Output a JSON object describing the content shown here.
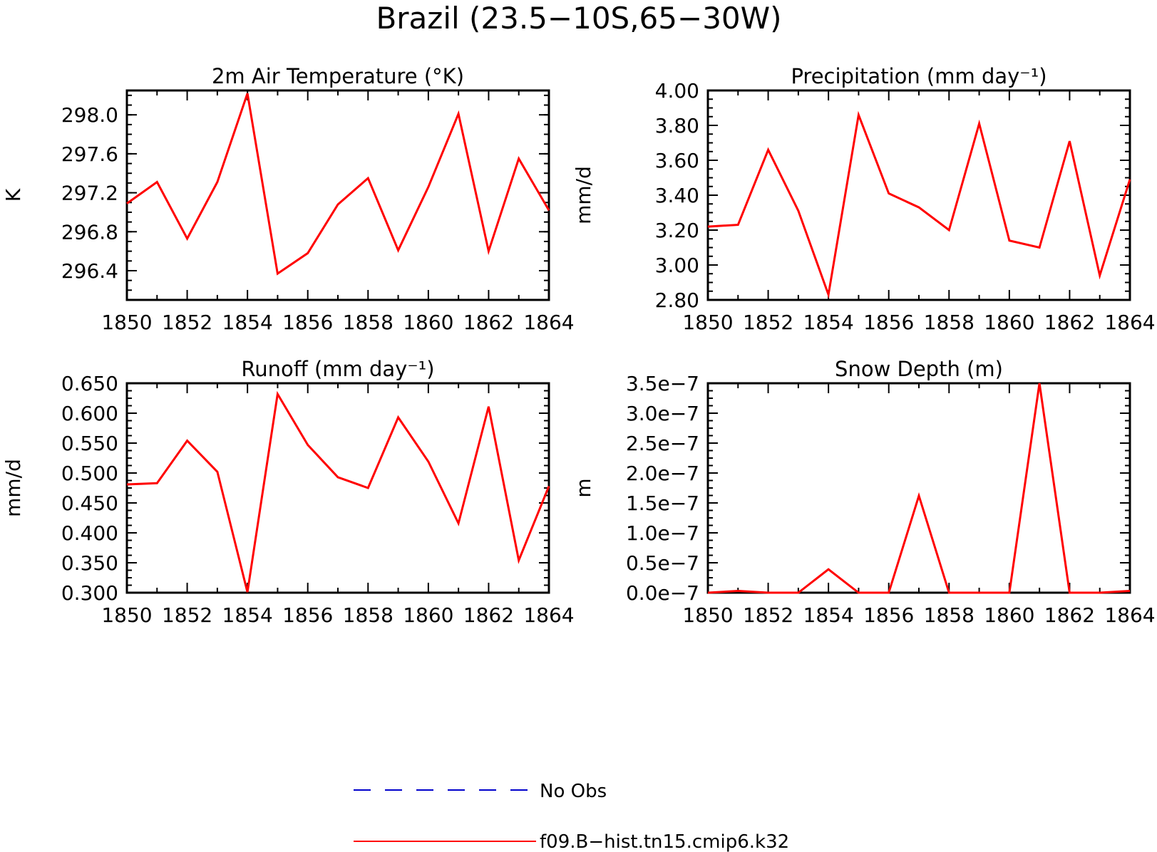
{
  "title": "Brazil (23.5−10S,65−30W)",
  "colors": {
    "model": "#ff0000",
    "obs": "#0000cc"
  },
  "legend": {
    "items": [
      {
        "label": "No Obs",
        "style": "dashed",
        "color": "#0000cc"
      },
      {
        "label": "f09.B−hist.tn15.cmip6.k32",
        "style": "solid",
        "color": "#ff0000"
      }
    ]
  },
  "chart_data": [
    {
      "type": "line",
      "title": "2m Air Temperature (°K)",
      "ylabel": "K",
      "xlim": [
        1850,
        1864
      ],
      "ylim": [
        296.1,
        298.25
      ],
      "xticks": [
        1850,
        1852,
        1854,
        1856,
        1858,
        1860,
        1862,
        1864
      ],
      "xtick_labels": [
        "1850",
        "1852",
        "1854",
        "1856",
        "1858",
        "1860",
        "1862",
        "1864"
      ],
      "yticks": [
        296.4,
        296.8,
        297.2,
        297.6,
        298.0
      ],
      "ytick_labels": [
        "296.4",
        "296.8",
        "297.2",
        "297.6",
        "298.0"
      ],
      "yminor": 0.1,
      "series": [
        {
          "name": "f09.B−hist.tn15.cmip6.k32",
          "x": [
            1850,
            1851,
            1852,
            1853,
            1854,
            1855,
            1856,
            1857,
            1858,
            1859,
            1860,
            1861,
            1862,
            1863,
            1864
          ],
          "values": [
            297.09,
            297.31,
            296.73,
            297.31,
            298.22,
            296.37,
            296.58,
            297.08,
            297.35,
            296.61,
            297.26,
            298.01,
            296.6,
            297.55,
            297.02
          ]
        }
      ]
    },
    {
      "type": "line",
      "title": "Precipitation (mm day⁻¹)",
      "ylabel": "mm/d",
      "xlim": [
        1850,
        1864
      ],
      "ylim": [
        2.8,
        4.0
      ],
      "xticks": [
        1850,
        1852,
        1854,
        1856,
        1858,
        1860,
        1862,
        1864
      ],
      "xtick_labels": [
        "1850",
        "1852",
        "1854",
        "1856",
        "1858",
        "1860",
        "1862",
        "1864"
      ],
      "yticks": [
        2.8,
        3.0,
        3.2,
        3.4,
        3.6,
        3.8,
        4.0
      ],
      "ytick_labels": [
        "2.80",
        "3.00",
        "3.20",
        "3.40",
        "3.60",
        "3.80",
        "4.00"
      ],
      "yminor": 0.05,
      "series": [
        {
          "name": "f09.B−hist.tn15.cmip6.k32",
          "x": [
            1850,
            1851,
            1852,
            1853,
            1854,
            1855,
            1856,
            1857,
            1858,
            1859,
            1860,
            1861,
            1862,
            1863,
            1864
          ],
          "values": [
            3.22,
            3.23,
            3.66,
            3.31,
            2.83,
            3.86,
            3.41,
            3.33,
            3.2,
            3.81,
            3.14,
            3.1,
            3.71,
            2.94,
            3.49
          ]
        }
      ]
    },
    {
      "type": "line",
      "title": "Runoff (mm day⁻¹)",
      "ylabel": "mm/d",
      "xlim": [
        1850,
        1864
      ],
      "ylim": [
        0.3,
        0.65
      ],
      "xticks": [
        1850,
        1852,
        1854,
        1856,
        1858,
        1860,
        1862,
        1864
      ],
      "xtick_labels": [
        "1850",
        "1852",
        "1854",
        "1856",
        "1858",
        "1860",
        "1862",
        "1864"
      ],
      "yticks": [
        0.3,
        0.35,
        0.4,
        0.45,
        0.5,
        0.55,
        0.6,
        0.65
      ],
      "ytick_labels": [
        "0.300",
        "0.350",
        "0.400",
        "0.450",
        "0.500",
        "0.550",
        "0.600",
        "0.650"
      ],
      "yminor": 0.0125,
      "series": [
        {
          "name": "f09.B−hist.tn15.cmip6.k32",
          "x": [
            1850,
            1851,
            1852,
            1853,
            1854,
            1855,
            1856,
            1857,
            1858,
            1859,
            1860,
            1861,
            1862,
            1863,
            1864
          ],
          "values": [
            0.481,
            0.483,
            0.554,
            0.502,
            0.301,
            0.632,
            0.547,
            0.493,
            0.475,
            0.593,
            0.519,
            0.416,
            0.611,
            0.354,
            0.478
          ]
        }
      ]
    },
    {
      "type": "line",
      "title": "Snow Depth (m)",
      "ylabel": "m",
      "xlim": [
        1850,
        1864
      ],
      "ylim": [
        0,
        3.5e-07
      ],
      "xticks": [
        1850,
        1852,
        1854,
        1856,
        1858,
        1860,
        1862,
        1864
      ],
      "xtick_labels": [
        "1850",
        "1852",
        "1854",
        "1856",
        "1858",
        "1860",
        "1862",
        "1864"
      ],
      "yticks": [
        0,
        5e-08,
        1e-07,
        1.5e-07,
        2e-07,
        2.5e-07,
        3e-07,
        3.5e-07
      ],
      "ytick_labels": [
        "0.0e−7",
        "0.5e−7",
        "1.0e−7",
        "1.5e−7",
        "2.0e−7",
        "2.5e−7",
        "3.0e−7",
        "3.5e−7"
      ],
      "yminor": 1.25e-08,
      "series": [
        {
          "name": "f09.B−hist.tn15.cmip6.k32",
          "x": [
            1850,
            1851,
            1852,
            1853,
            1854,
            1855,
            1856,
            1857,
            1858,
            1859,
            1860,
            1861,
            1862,
            1863,
            1864
          ],
          "values": [
            0,
            3e-09,
            0,
            0,
            3.9e-08,
            0,
            0,
            1.62e-07,
            0,
            0,
            0,
            3.5e-07,
            0,
            0,
            3e-09
          ]
        }
      ]
    }
  ]
}
